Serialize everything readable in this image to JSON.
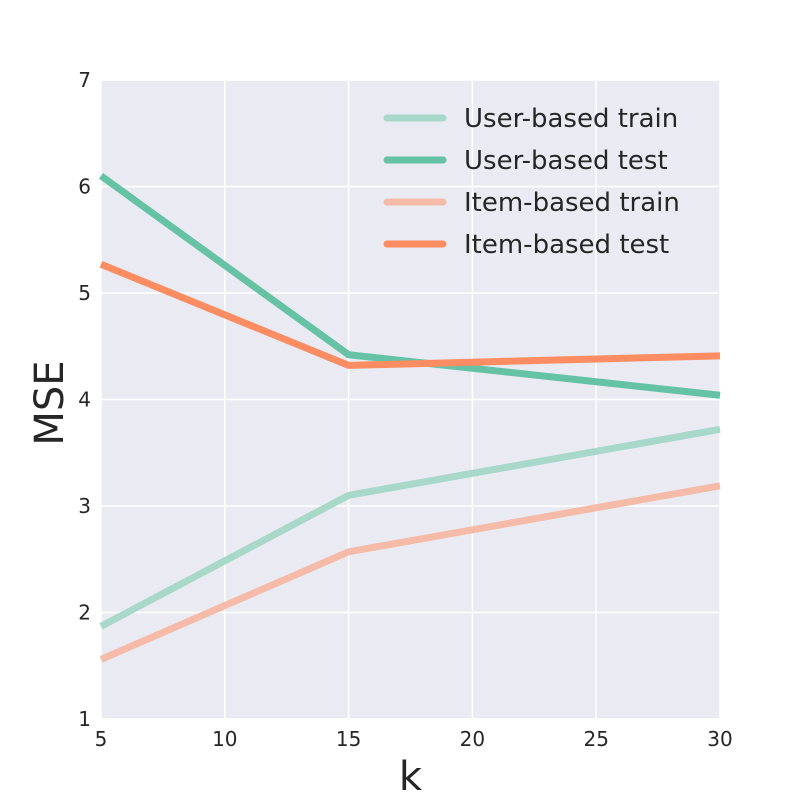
{
  "chart_data": {
    "type": "line",
    "xlabel": "k",
    "ylabel": "MSE",
    "xlim": [
      5,
      30
    ],
    "ylim": [
      1,
      7
    ],
    "xticks": [
      5,
      10,
      15,
      20,
      25,
      30
    ],
    "yticks": [
      1,
      2,
      3,
      4,
      5,
      6,
      7
    ],
    "grid": true,
    "legend_position": "top-right",
    "series": [
      {
        "name": "User-based train",
        "color": "#a8d8c9",
        "x": [
          5,
          15,
          30
        ],
        "y": [
          1.87,
          3.1,
          3.72
        ]
      },
      {
        "name": "User-based test",
        "color": "#66c2a5",
        "x": [
          5,
          15,
          30
        ],
        "y": [
          6.1,
          4.42,
          4.04
        ]
      },
      {
        "name": "Item-based train",
        "color": "#f5bba8",
        "x": [
          5,
          15,
          30
        ],
        "y": [
          1.56,
          2.57,
          3.19
        ]
      },
      {
        "name": "Item-based test",
        "color": "#fc8d62",
        "x": [
          5,
          15,
          30
        ],
        "y": [
          5.27,
          4.32,
          4.41
        ]
      }
    ]
  }
}
